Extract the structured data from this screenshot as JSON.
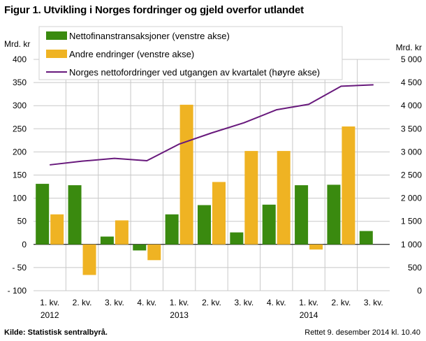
{
  "title": "Figur 1. Utvikling i Norges fordringer og gjeld overfor utlandet",
  "source": "Kilde: Statistisk sentralbyrå.",
  "updated": "Rettet 9. desember 2014 kl. 10.40",
  "colors": {
    "bars_primary": "#3a8a0f",
    "bars_secondary": "#efb323",
    "line": "#68197c",
    "grid": "#c8c8c8"
  },
  "chart_data": {
    "type": "bar",
    "ylabel_left": "Mrd. kr",
    "ylabel_right": "Mrd. kr",
    "ylim_left": [
      -100,
      400
    ],
    "ylim_right": [
      0,
      5000
    ],
    "yticks_left": [
      "400",
      "350",
      "300",
      "250",
      "200",
      "150",
      "100",
      "50",
      "0",
      "- 50",
      "- 100"
    ],
    "yticks_right": [
      "5 000",
      "4 500",
      "4 000",
      "3 500",
      "3 000",
      "2 500",
      "2 000",
      "1 500",
      "1 000",
      "500",
      "0"
    ],
    "grid": true,
    "legend_position": "top",
    "categories": [
      "1. kv.",
      "2. kv.",
      "3. kv.",
      "4. kv.",
      "1. kv.",
      "2. kv.",
      "3. kv.",
      "4. kv.",
      "1. kv.",
      "2. kv.",
      "3. kv."
    ],
    "year_labels": [
      "2012",
      "",
      "",
      "",
      "2013",
      "",
      "",
      "",
      "2014",
      "",
      ""
    ],
    "series": [
      {
        "name": "Nettofinanstransaksjoner (venstre akse)",
        "type": "bar",
        "axis": "left",
        "values": [
          131,
          128,
          17,
          -13,
          65,
          85,
          26,
          86,
          128,
          129,
          29
        ]
      },
      {
        "name": "Andre endringer (venstre akse)",
        "type": "bar",
        "axis": "left",
        "values": [
          65,
          -66,
          52,
          -34,
          302,
          135,
          202,
          202,
          -11,
          255,
          null
        ]
      },
      {
        "name": "Norges nettofordringer ved utgangen av kvartalet (høyre akse)",
        "type": "line",
        "axis": "right",
        "values": [
          2720,
          2800,
          2860,
          2810,
          3170,
          3410,
          3630,
          3910,
          4030,
          4420,
          4450
        ]
      }
    ]
  }
}
